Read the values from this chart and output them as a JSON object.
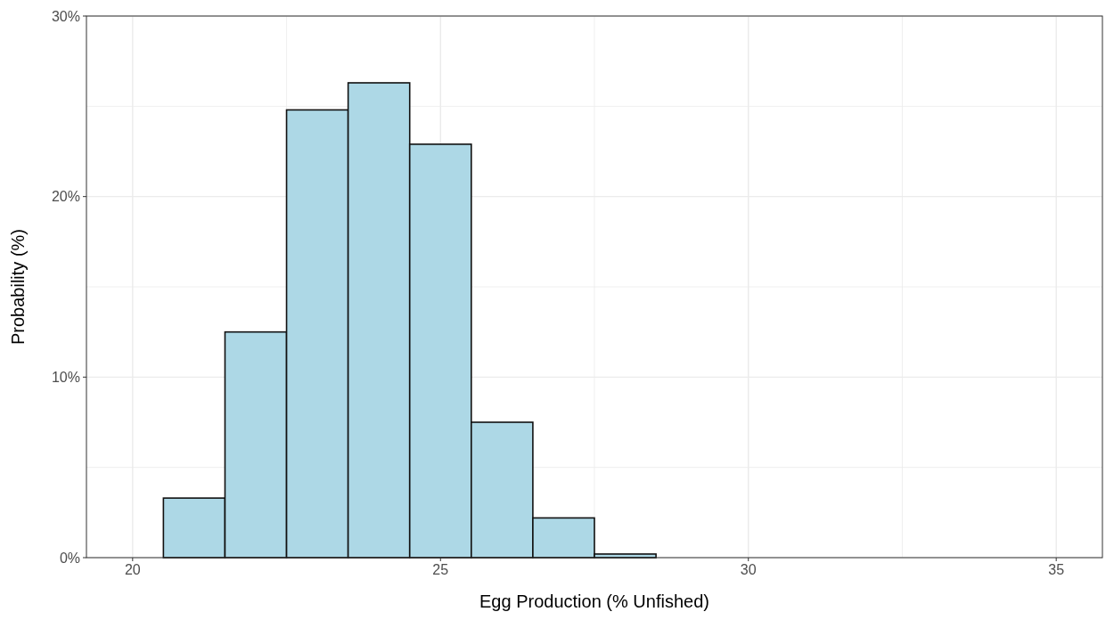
{
  "chart_data": {
    "type": "histogram",
    "xlabel": "Egg Production (% Unfished)",
    "ylabel": "Probability (%)",
    "bins": [
      20.5,
      21.5,
      22.5,
      23.5,
      24.5,
      25.5,
      26.5,
      27.5,
      28.5
    ],
    "values": [
      3.3,
      12.5,
      24.8,
      26.3,
      22.9,
      7.5,
      2.2,
      0.2
    ],
    "color": "#add8e6",
    "xlim": [
      19.25,
      35.75
    ],
    "xticks": [
      {
        "value": 20,
        "label": "20"
      },
      {
        "value": 22.5,
        "label": null
      },
      {
        "value": 25,
        "label": "25"
      },
      {
        "value": 27.5,
        "label": null
      },
      {
        "value": 30,
        "label": "30"
      },
      {
        "value": 32.5,
        "label": null
      },
      {
        "value": 35,
        "label": "35"
      }
    ],
    "ylim": [
      0,
      30
    ],
    "yticks": [
      {
        "value": 0,
        "label": "0%"
      },
      {
        "value": 5,
        "label": null
      },
      {
        "value": 10,
        "label": "10%"
      },
      {
        "value": 15,
        "label": null
      },
      {
        "value": 20,
        "label": "20%"
      },
      {
        "value": 25,
        "label": null
      },
      {
        "value": 30,
        "label": "30%"
      }
    ],
    "grid": true
  }
}
